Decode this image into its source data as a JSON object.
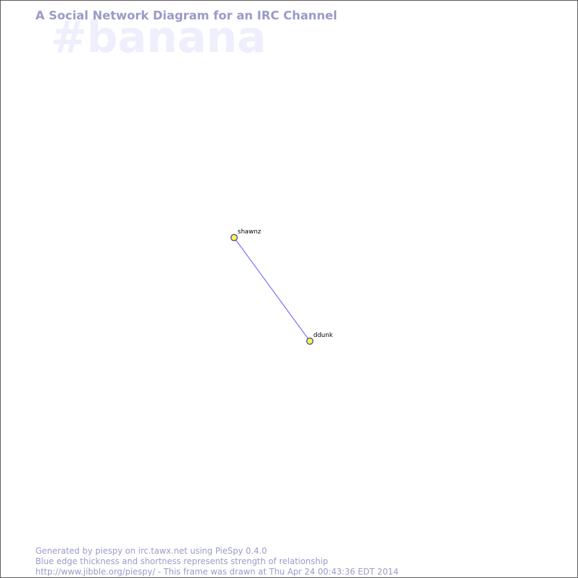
{
  "header": {
    "title": "A Social Network Diagram for an IRC Channel",
    "channel": "#banana"
  },
  "graph": {
    "nodes": [
      {
        "id": "shawnz",
        "label": "shawnz"
      },
      {
        "id": "ddunk",
        "label": "ddunk"
      }
    ],
    "edges": [
      {
        "from": "shawnz",
        "to": "ddunk"
      }
    ],
    "colors": {
      "edge": "#6e6eff",
      "node_fill": "#ffff33",
      "node_stroke": "#5555aa"
    }
  },
  "footer": {
    "line1": "Generated by piespy on irc.tawx.net using PieSpy 0.4.0",
    "line2": "Blue edge thickness and shortness represents strength of relationship",
    "line3": "http://www.jibble.org/piespy/ - This frame was drawn at Thu Apr 24 00:43:36 EDT 2014"
  }
}
